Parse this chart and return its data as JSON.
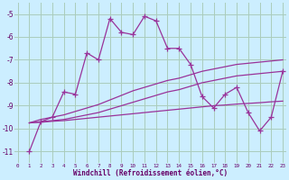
{
  "bg_color": "#cceeff",
  "grid_color": "#aaccbb",
  "line_color": "#993399",
  "xlabel": "Windchill (Refroidissement éolien,°C)",
  "x_ticks": [
    0,
    1,
    2,
    3,
    4,
    5,
    6,
    7,
    8,
    9,
    10,
    11,
    12,
    13,
    14,
    15,
    16,
    17,
    18,
    19,
    20,
    21,
    22,
    23
  ],
  "y_ticks": [
    -5,
    -6,
    -7,
    -8,
    -9,
    -10,
    -11
  ],
  "xlim": [
    -0.3,
    23.3
  ],
  "ylim": [
    -11.5,
    -4.5
  ],
  "series1_x": [
    1,
    2,
    3,
    4,
    5,
    6,
    7,
    8,
    9,
    10,
    11,
    12,
    13,
    14,
    15,
    16,
    17,
    18,
    19,
    20,
    21,
    22,
    23
  ],
  "series1_y": [
    -11.0,
    -9.7,
    -9.5,
    -8.4,
    -8.5,
    -6.7,
    -7.0,
    -5.2,
    -5.8,
    -5.9,
    -5.1,
    -5.3,
    -6.5,
    -6.5,
    -7.2,
    -8.6,
    -9.1,
    -8.5,
    -8.2,
    -9.3,
    -10.1,
    -9.5,
    -7.5
  ],
  "series2_x": [
    1,
    2,
    3,
    4,
    5,
    6,
    7,
    8,
    9,
    10,
    11,
    12,
    13,
    14,
    15,
    16,
    17,
    18,
    19,
    20,
    21,
    22,
    23
  ],
  "series2_y": [
    -9.75,
    -9.7,
    -9.65,
    -9.6,
    -9.5,
    -9.4,
    -9.3,
    -9.15,
    -9.0,
    -8.85,
    -8.7,
    -8.55,
    -8.4,
    -8.3,
    -8.15,
    -8.0,
    -7.9,
    -7.8,
    -7.7,
    -7.65,
    -7.6,
    -7.55,
    -7.5
  ],
  "series3_x": [
    1,
    2,
    3,
    4,
    5,
    6,
    7,
    8,
    9,
    10,
    11,
    12,
    13,
    14,
    15,
    16,
    17,
    18,
    19,
    20,
    21,
    22,
    23
  ],
  "series3_y": [
    -9.75,
    -9.6,
    -9.5,
    -9.4,
    -9.25,
    -9.1,
    -8.95,
    -8.75,
    -8.55,
    -8.35,
    -8.2,
    -8.05,
    -7.9,
    -7.8,
    -7.65,
    -7.5,
    -7.4,
    -7.3,
    -7.2,
    -7.15,
    -7.1,
    -7.05,
    -7.0
  ],
  "series4_x": [
    1,
    2,
    3,
    4,
    5,
    6,
    7,
    8,
    9,
    10,
    11,
    12,
    13,
    14,
    15,
    16,
    17,
    18,
    19,
    20,
    21,
    22,
    23
  ],
  "series4_y": [
    -9.75,
    -9.72,
    -9.68,
    -9.65,
    -9.6,
    -9.55,
    -9.5,
    -9.45,
    -9.4,
    -9.35,
    -9.3,
    -9.25,
    -9.2,
    -9.15,
    -9.1,
    -9.05,
    -9.0,
    -8.97,
    -8.93,
    -8.9,
    -8.87,
    -8.83,
    -8.8
  ]
}
